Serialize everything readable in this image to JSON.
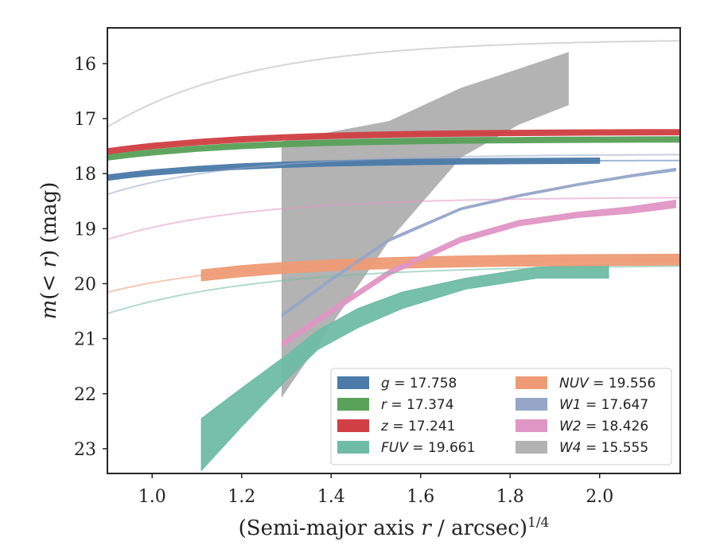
{
  "chart_data": {
    "type": "line",
    "xlabel": "(Semi-major axis r / arcsec)^1/4",
    "xlabel_parts": {
      "pre": "(Semi-major axis ",
      "var": "r",
      "mid": " / arcsec)",
      "sup": "1/4"
    },
    "ylabel": "m(< r) (mag)",
    "ylabel_parts": {
      "var": "m",
      "mid": "(< ",
      "var2": "r",
      "post": ") (mag)"
    },
    "xlim": [
      0.9,
      2.18
    ],
    "ylim": [
      23.45,
      15.35
    ],
    "y_inverted": true,
    "x_ticks": [
      "1.0",
      "1.2",
      "1.4",
      "1.6",
      "1.8",
      "2.0"
    ],
    "x_tick_values": [
      1.0,
      1.2,
      1.4,
      1.6,
      1.8,
      2.0
    ],
    "y_ticks": [
      "16",
      "17",
      "18",
      "19",
      "20",
      "21",
      "22",
      "23"
    ],
    "y_tick_values": [
      16,
      17,
      18,
      19,
      20,
      21,
      22,
      23
    ],
    "grid": false,
    "legend_placement": "lower-right",
    "legend": [
      {
        "name": "g",
        "value": "17.758",
        "color": "#4c7ba9"
      },
      {
        "name": "r",
        "value": "17.374",
        "color": "#5aa15a"
      },
      {
        "name": "z",
        "value": "17.241",
        "color": "#d04044"
      },
      {
        "name": "FUV",
        "value": "19.661",
        "color": "#6fbca4"
      },
      {
        "name": "NUV",
        "value": "19.556",
        "color": "#ee9b75"
      },
      {
        "name": "W1",
        "value": "17.647",
        "color": "#95a6c9"
      },
      {
        "name": "W2",
        "value": "18.426",
        "color": "#e096c5"
      },
      {
        "name": "W4",
        "value": "15.555",
        "color": "#b3b3b3"
      }
    ],
    "series": [
      {
        "name": "g",
        "color": "#4c7ba9",
        "model": {
          "asym": 17.758,
          "a": 7.05,
          "k": 3.45
        },
        "band": {
          "x": [
            0.9,
            0.95,
            1.0,
            1.1,
            1.2,
            1.3,
            1.4,
            1.5,
            1.6,
            1.7,
            1.8,
            1.9,
            2.0
          ],
          "width": 0.05
        }
      },
      {
        "name": "r",
        "color": "#5aa15a",
        "model": {
          "asym": 17.374,
          "a": 6.5,
          "k": 3.3
        },
        "band": {
          "x": [
            0.9,
            0.95,
            1.0,
            1.1,
            1.2,
            1.3,
            1.4,
            1.5,
            1.6,
            1.7,
            1.8,
            1.9,
            2.0,
            2.1,
            2.18
          ],
          "width": 0.05
        }
      },
      {
        "name": "z",
        "color": "#d04044",
        "model": {
          "asym": 17.241,
          "a": 6.3,
          "k": 3.2
        },
        "band": {
          "x": [
            0.9,
            0.95,
            1.0,
            1.1,
            1.2,
            1.3,
            1.4,
            1.5,
            1.6,
            1.7,
            1.8,
            1.9,
            2.0,
            2.1,
            2.18
          ],
          "width": 0.05
        }
      },
      {
        "name": "FUV",
        "color": "#6fbca4",
        "model": {
          "asym": 19.661,
          "a": 12.0,
          "k": 2.9
        },
        "band": {
          "x": [
            1.11,
            1.2,
            1.3,
            1.37,
            1.46,
            1.56,
            1.7,
            1.86,
            2.02
          ],
          "lower": [
            22.45,
            21.9,
            21.3,
            20.85,
            20.45,
            20.15,
            19.9,
            19.7,
            19.65
          ],
          "upper": [
            23.4,
            22.6,
            21.75,
            21.2,
            20.8,
            20.45,
            20.1,
            19.9,
            19.9
          ]
        }
      },
      {
        "name": "NUV",
        "color": "#ee9b75",
        "model": {
          "asym": 19.556,
          "a": 12.8,
          "k": 3.4
        },
        "band": {
          "x": [
            1.11,
            1.2,
            1.3,
            1.4,
            1.5,
            1.6,
            1.7,
            1.8,
            1.9,
            2.0,
            2.1,
            2.18
          ],
          "width": 0.1
        }
      },
      {
        "name": "W1",
        "color": "#95a6c9",
        "model": {
          "asym": 17.647,
          "a": 17.0,
          "k": 3.5
        },
        "band": {
          "x": [
            1.29,
            1.4,
            1.53,
            1.69,
            1.82,
            1.95,
            2.07,
            2.17
          ],
          "lower": [
            20.55,
            19.9,
            19.18,
            18.62,
            18.38,
            18.18,
            18.02,
            17.9
          ],
          "upper": [
            20.6,
            19.95,
            19.23,
            18.66,
            18.42,
            18.22,
            18.06,
            17.95
          ]
        }
      },
      {
        "name": "W2",
        "color": "#e096c5",
        "model": {
          "asym": 18.426,
          "a": 15.0,
          "k": 3.3
        },
        "band": {
          "x": [
            1.29,
            1.4,
            1.53,
            1.69,
            1.82,
            1.95,
            2.07,
            2.17
          ],
          "lower": [
            21.05,
            20.45,
            19.75,
            19.15,
            18.85,
            18.7,
            18.6,
            18.48
          ],
          "upper": [
            21.15,
            20.55,
            19.85,
            19.25,
            18.95,
            18.8,
            18.72,
            18.62
          ]
        }
      },
      {
        "name": "W4",
        "color": "#b3b3b3",
        "model": {
          "asym": 15.555,
          "a": 26.0,
          "k": 3.1
        },
        "band": {
          "x": [
            1.29,
            1.53,
            1.69,
            1.82,
            1.93
          ],
          "lower": [
            17.42,
            17.05,
            16.45,
            16.1,
            15.8
          ],
          "upper": [
            22.05,
            19.2,
            17.7,
            17.1,
            16.75
          ]
        }
      }
    ]
  }
}
